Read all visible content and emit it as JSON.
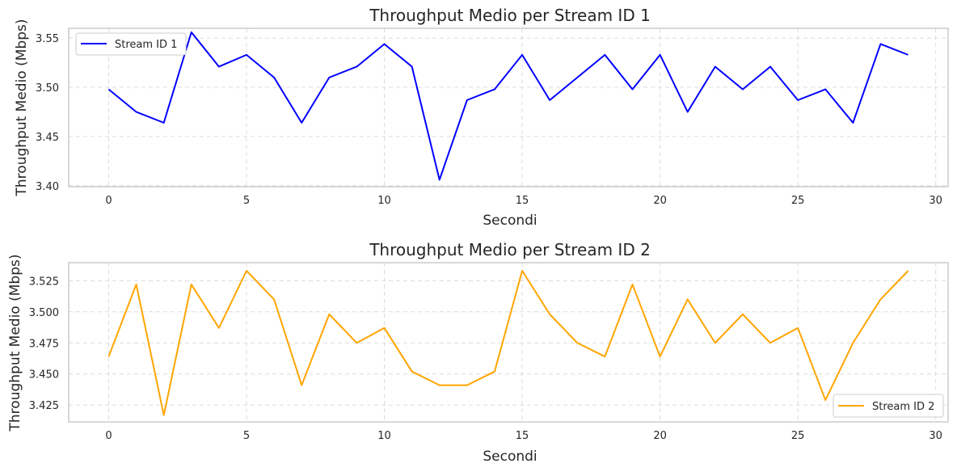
{
  "chart_data": [
    {
      "type": "line",
      "title": "Throughput Medio per Stream ID 1",
      "xlabel": "Secondi",
      "ylabel": "Throughput Medio (Mbps)",
      "xlim": [
        -1.45,
        30.45
      ],
      "ylim": [
        3.399,
        3.56
      ],
      "xticks": [
        0,
        5,
        10,
        15,
        20,
        25,
        30
      ],
      "yticks": [
        3.4,
        3.45,
        3.5,
        3.55
      ],
      "ytick_labels": [
        "3.40",
        "3.45",
        "3.50",
        "3.55"
      ],
      "grid": true,
      "legend_position": "top-left",
      "series": [
        {
          "name": "Stream ID 1",
          "color": "#0000ff",
          "x": [
            0,
            1,
            2,
            3,
            4,
            5,
            6,
            7,
            8,
            9,
            10,
            11,
            12,
            13,
            14,
            15,
            16,
            17,
            18,
            19,
            20,
            21,
            22,
            23,
            24,
            25,
            26,
            27,
            28,
            29
          ],
          "values": [
            3.498,
            3.475,
            3.464,
            3.556,
            3.521,
            3.533,
            3.51,
            3.464,
            3.51,
            3.521,
            3.544,
            3.521,
            3.406,
            3.487,
            3.498,
            3.533,
            3.487,
            3.51,
            3.533,
            3.498,
            3.533,
            3.475,
            3.521,
            3.498,
            3.521,
            3.487,
            3.498,
            3.464,
            3.544,
            3.533
          ]
        }
      ]
    },
    {
      "type": "line",
      "title": "Throughput Medio per Stream ID 2",
      "xlabel": "Secondi",
      "ylabel": "Throughput Medio (Mbps)",
      "xlim": [
        -1.45,
        30.45
      ],
      "ylim": [
        3.4115,
        3.5395
      ],
      "xticks": [
        0,
        5,
        10,
        15,
        20,
        25,
        30
      ],
      "yticks": [
        3.425,
        3.45,
        3.475,
        3.5,
        3.525
      ],
      "ytick_labels": [
        "3.425",
        "3.450",
        "3.475",
        "3.500",
        "3.525"
      ],
      "grid": true,
      "legend_position": "bottom-right",
      "series": [
        {
          "name": "Stream ID 2",
          "color": "#ffa500",
          "x": [
            0,
            1,
            2,
            3,
            4,
            5,
            6,
            7,
            8,
            9,
            10,
            11,
            12,
            13,
            14,
            15,
            16,
            17,
            18,
            19,
            20,
            21,
            22,
            23,
            24,
            25,
            26,
            27,
            28,
            29
          ],
          "values": [
            3.464,
            3.522,
            3.417,
            3.522,
            3.487,
            3.533,
            3.51,
            3.441,
            3.498,
            3.475,
            3.487,
            3.452,
            3.441,
            3.441,
            3.452,
            3.533,
            3.498,
            3.475,
            3.464,
            3.522,
            3.464,
            3.51,
            3.475,
            3.498,
            3.475,
            3.487,
            3.429,
            3.475,
            3.51,
            3.533
          ]
        }
      ]
    }
  ]
}
